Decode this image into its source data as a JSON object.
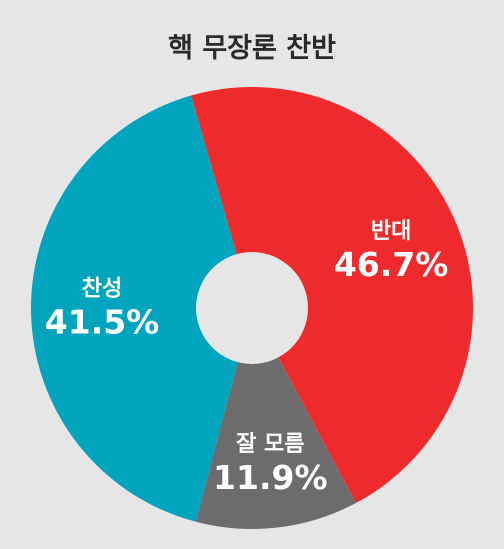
{
  "chart_data": {
    "type": "pie",
    "title": "핵 무장론 찬반",
    "slices": [
      {
        "label": "반대",
        "value": 46.7,
        "display": "46.7%",
        "color": "#ef2a2d"
      },
      {
        "label": "잘 모름",
        "value": 11.9,
        "display": "11.9%",
        "color": "#6c6c6f"
      },
      {
        "label": "찬성",
        "value": 41.5,
        "display": "41.5%",
        "color": "#00a5bd"
      }
    ],
    "donut": true,
    "background": "#e6e6e7"
  }
}
